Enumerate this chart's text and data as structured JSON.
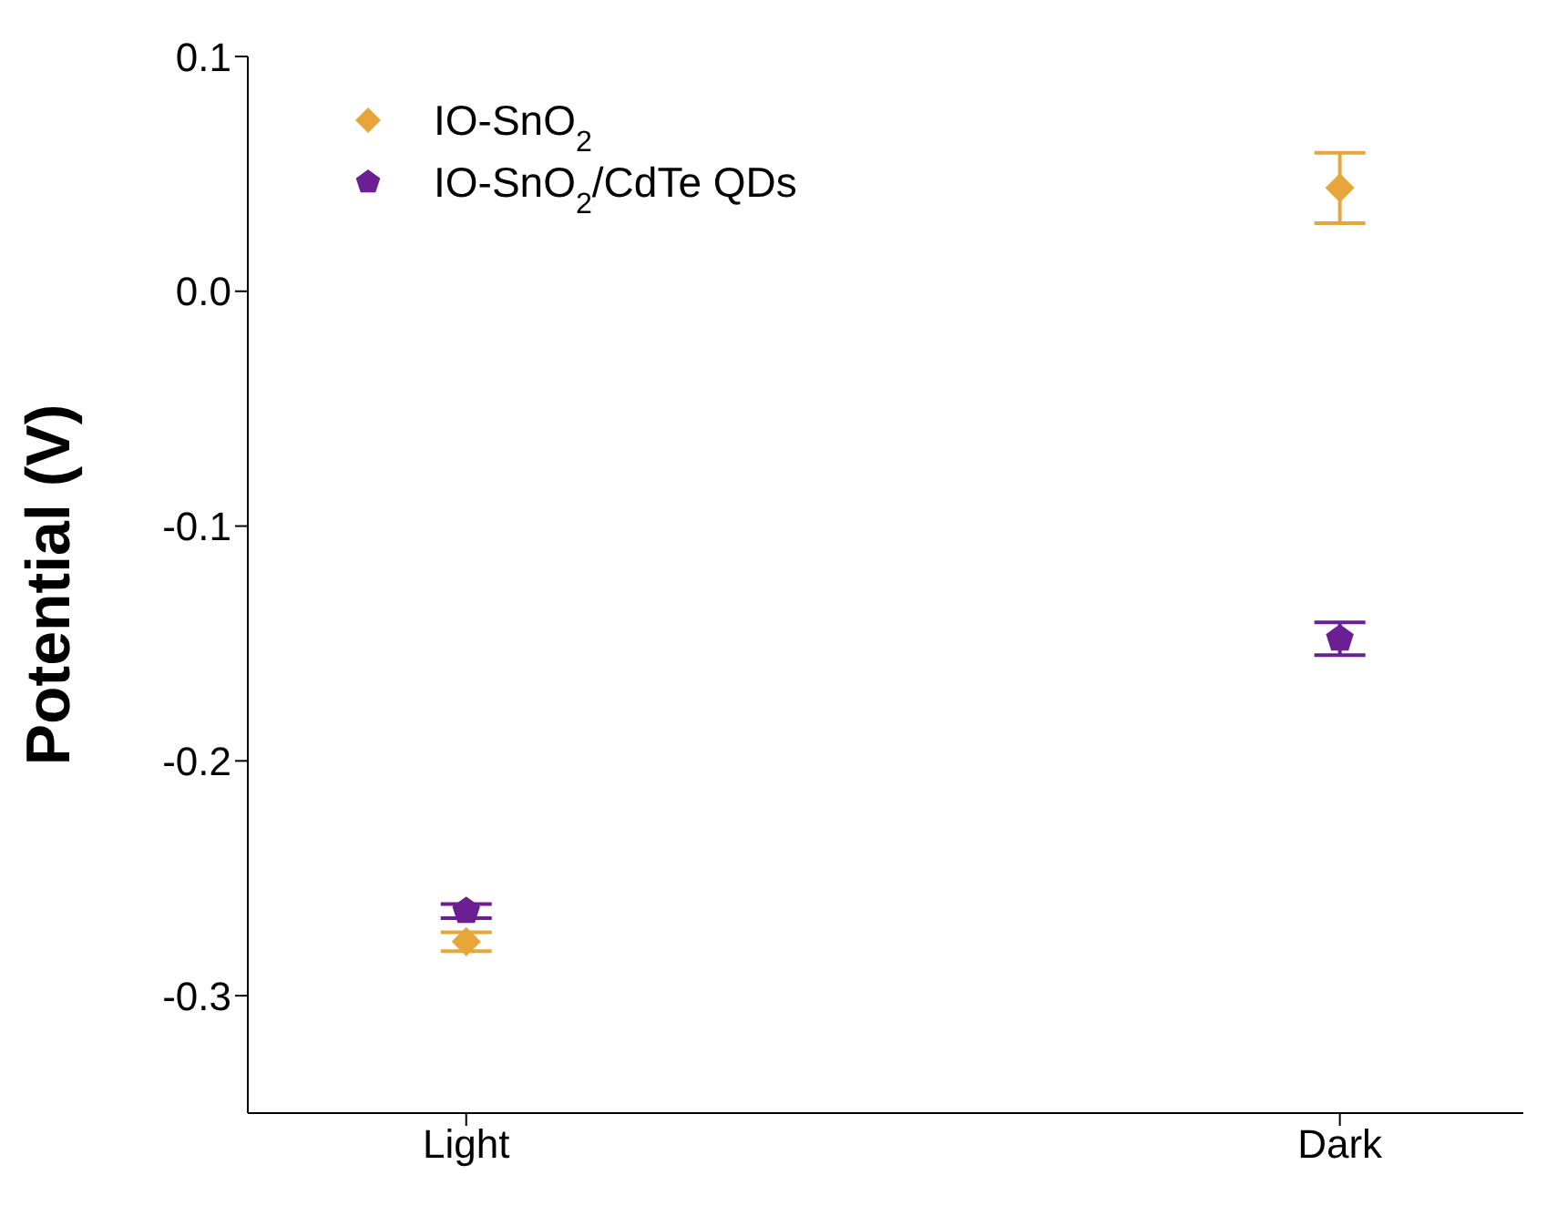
{
  "chart_data": {
    "type": "scatter",
    "ylabel": "Potential (V)",
    "categories": [
      "Light",
      "Dark"
    ],
    "ylim": [
      -0.35,
      0.1
    ],
    "yticks": [
      {
        "value": 0.1,
        "label": "0.1"
      },
      {
        "value": 0,
        "label": "0.0"
      },
      {
        "value": -0.1,
        "label": "-0.1"
      },
      {
        "value": -0.2,
        "label": "-0.2"
      },
      {
        "value": -0.3,
        "label": "-0.3"
      }
    ],
    "grid": false,
    "legend": "top left",
    "series": [
      {
        "name": "IO-SnO$_{2}$",
        "color": "#e6a63a",
        "marker": "diamond",
        "values": [
          -0.277,
          0.044
        ],
        "errors": [
          0.004,
          0.015
        ]
      },
      {
        "name": "IO-SnO$_{2}$/CdTe QDs",
        "color": "#6a1f93",
        "values": [
          -0.264,
          -0.148
        ],
        "errors": [
          0.003,
          0.007
        ]
      }
    ]
  }
}
